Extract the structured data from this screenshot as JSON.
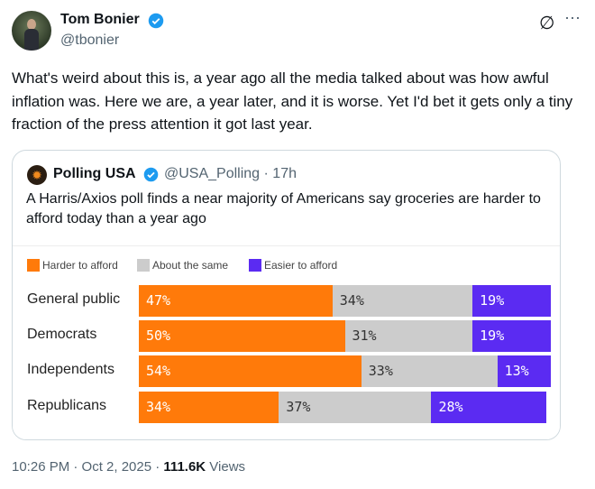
{
  "author": {
    "name": "Tom Bonier",
    "handle": "@tbonier",
    "verified": true
  },
  "actions": {
    "grok_icon": "grok-icon",
    "more_icon": "⋯"
  },
  "tweet_text": "What's weird about this is, a year ago all the media talked about was how awful inflation was. Here we are, a year later, and it is worse. Yet I'd bet it gets only a tiny fraction of the press attention it got last year.",
  "quote": {
    "name": "Polling USA",
    "handle": "@USA_Polling",
    "time": "· 17h",
    "verified": true,
    "text": "A Harris/Axios poll finds a near majority of Americans say groceries are harder to afford today than a year ago"
  },
  "chart_data": {
    "type": "bar",
    "stacked": true,
    "orientation": "horizontal",
    "categories": [
      "General public",
      "Democrats",
      "Independents",
      "Republicans"
    ],
    "series": [
      {
        "name": "Harder to afford",
        "color": "#ff7a0a",
        "values": [
          47,
          50,
          54,
          34
        ]
      },
      {
        "name": "About the same",
        "color": "#cccccc",
        "values": [
          34,
          31,
          33,
          37
        ]
      },
      {
        "name": "Easier to afford",
        "color": "#5b2bf2",
        "values": [
          19,
          19,
          13,
          28
        ]
      }
    ],
    "unit": "%",
    "legend": "top-left"
  },
  "meta": {
    "time": "10:26 PM · Oct 2, 2025 · ",
    "views_count": "111.6K",
    "views_label": " Views"
  }
}
